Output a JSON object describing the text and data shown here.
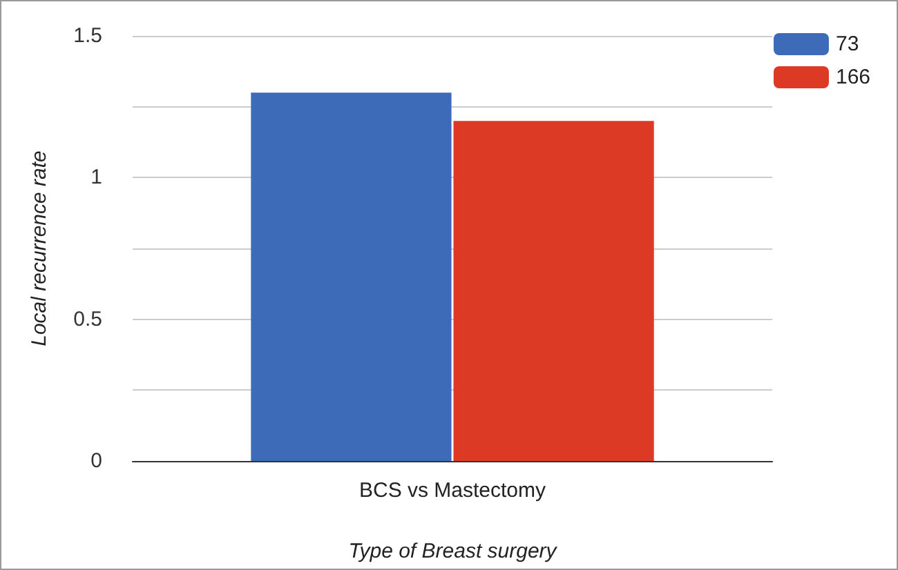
{
  "chart_data": {
    "type": "bar",
    "xlabel": "Type of Breast surgery",
    "ylabel": "Local recurrence rate",
    "categories": [
      "BCS vs Mastectomy"
    ],
    "series": [
      {
        "name": "73",
        "color": "#3d6bb8",
        "values": [
          1.3
        ]
      },
      {
        "name": "166",
        "color": "#dd3a26",
        "values": [
          1.2
        ]
      }
    ],
    "ylim": [
      0,
      1.5
    ],
    "yticks": [
      0,
      {
        "value": 0.25,
        "label": null
      },
      0.5,
      {
        "value": 0.75,
        "label": null
      },
      1,
      {
        "value": 1.25,
        "label": null
      },
      1.5
    ],
    "grid": "y",
    "legend": "top right"
  }
}
